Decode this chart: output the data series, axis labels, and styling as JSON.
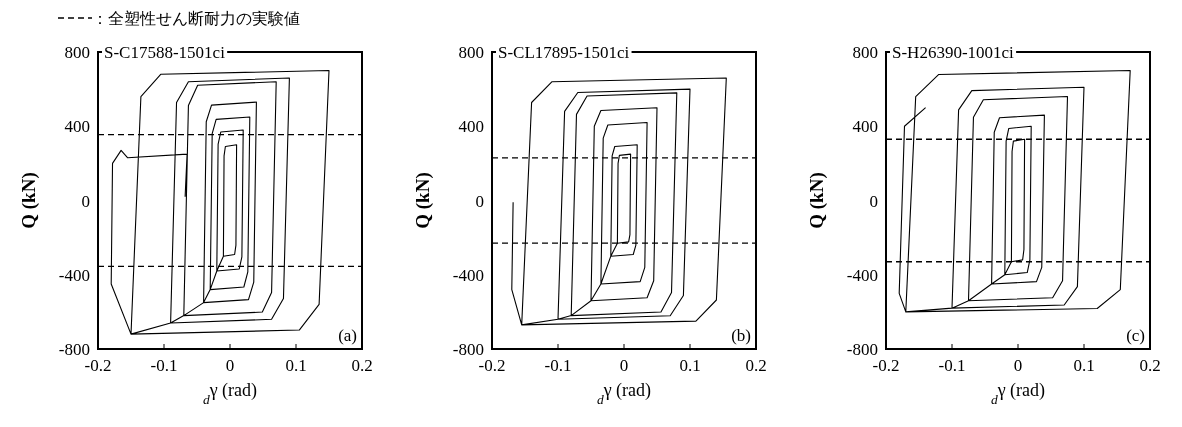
{
  "chart_data": [
    {
      "type": "line",
      "title": "S-C17588-1501ci",
      "xlabel": "$_{d}$γ (rad)",
      "ylabel": "Q (kN)",
      "xlim": [
        -0.2,
        0.2
      ],
      "ylim": [
        -800,
        800
      ],
      "xticks": [
        -0.2,
        -0.1,
        0,
        0.1,
        0.2
      ],
      "yticks": [
        -800,
        -400,
        0,
        400,
        800
      ],
      "legend": "top left",
      "annotations": [
        "(a)"
      ],
      "series": [
        {
          "color": "#000000",
          "x": [
            -0.01,
            -0.009,
            -0.007,
            0.01,
            0.009,
            0.007,
            -0.01,
            -0.02,
            -0.018,
            -0.014,
            0.02,
            0.018,
            0.014,
            -0.02,
            -0.03,
            -0.027,
            -0.021,
            0.03,
            0.027,
            0.021,
            -0.03,
            -0.04,
            -0.036,
            -0.028,
            0.04,
            0.036,
            0.028,
            -0.04,
            -0.07,
            -0.063,
            -0.049,
            0.07,
            0.063,
            0.049,
            -0.07,
            -0.09,
            -0.081,
            -0.063,
            0.09,
            0.081,
            0.063,
            -0.09,
            -0.15,
            -0.135,
            -0.105,
            0.15,
            0.135,
            0.105,
            -0.15,
            -0.18,
            -0.178,
            -0.165,
            -0.155,
            -0.065,
            -0.068
          ],
          "values": [
            -300,
            240,
            291,
            300,
            -240,
            -291,
            -300,
            -380,
            304,
            369,
            380,
            -304,
            -369,
            -380,
            -480,
            360,
            437,
            450,
            -384,
            -466,
            -480,
            -550,
            424,
            514,
            530,
            -440,
            -534,
            -550,
            -620,
            512,
            621,
            640,
            -496,
            -601,
            -620,
            -660,
            528,
            640,
            660,
            -528,
            -640,
            -660,
            -720,
            560,
            680,
            700,
            -560,
            -698,
            -720,
            -450,
            200,
            270,
            230,
            250,
            20
          ]
        }
      ],
      "ref_lines": [
        {
          "axis": "y",
          "value": 355,
          "label": "：全塑性せん断耐力の実験値",
          "line_style": "dashed",
          "color": "#000000"
        },
        {
          "axis": "y",
          "value": -355,
          "line_style": "dashed",
          "color": "#000000"
        }
      ]
    },
    {
      "type": "line",
      "title": "S-CL17895-1501ci",
      "xlabel": "$_{d}$γ (rad)",
      "ylabel": "Q (kN)",
      "xlim": [
        -0.2,
        0.2
      ],
      "ylim": [
        -800,
        800
      ],
      "xticks": [
        -0.2,
        -0.1,
        0,
        0.1,
        0.2
      ],
      "yticks": [
        -800,
        -400,
        0,
        400,
        800
      ],
      "annotations": [
        "(b)"
      ],
      "series": [
        {
          "color": "#000000",
          "x": [
            -0.01,
            -0.009,
            -0.007,
            0.01,
            0.009,
            0.007,
            -0.01,
            -0.02,
            -0.018,
            -0.014,
            0.02,
            0.018,
            0.014,
            -0.02,
            -0.035,
            -0.0315,
            -0.0245,
            0.035,
            0.0315,
            0.0245,
            -0.035,
            -0.05,
            -0.045,
            -0.035,
            0.05,
            0.045,
            0.035,
            -0.05,
            -0.08,
            -0.072,
            -0.056,
            0.08,
            0.072,
            0.056,
            -0.08,
            -0.1,
            -0.09,
            -0.07,
            0.1,
            0.09,
            0.07,
            -0.1,
            -0.155,
            -0.14,
            -0.109,
            0.155,
            0.14,
            0.109,
            -0.155,
            -0.17,
            -0.168
          ],
          "values": [
            -230,
            200,
            243,
            250,
            -184,
            -223,
            -230,
            -300,
            240,
            291,
            300,
            -240,
            -291,
            -300,
            -450,
            336,
            407,
            420,
            -360,
            -437,
            -450,
            -540,
            400,
            485,
            500,
            -432,
            -524,
            -540,
            -620,
            464,
            563,
            580,
            -496,
            -601,
            -620,
            -640,
            480,
            582,
            600,
            -512,
            -621,
            -640,
            -670,
            528,
            640,
            660,
            -536,
            -650,
            -670,
            -480,
            -10
          ]
        }
      ],
      "ref_lines": [
        {
          "axis": "y",
          "value": 230,
          "line_style": "dashed",
          "color": "#000000"
        },
        {
          "axis": "y",
          "value": -230,
          "line_style": "dashed",
          "color": "#000000"
        }
      ]
    },
    {
      "type": "line",
      "title": "S-H26390-1001ci",
      "xlabel": "$_{d}$γ (rad)",
      "ylabel": "Q (kN)",
      "xlim": [
        -0.2,
        0.2
      ],
      "ylim": [
        -800,
        800
      ],
      "xticks": [
        -0.2,
        -0.1,
        0,
        0.1,
        0.2
      ],
      "yticks": [
        -800,
        -400,
        0,
        400,
        800
      ],
      "annotations": [
        "(c)"
      ],
      "series": [
        {
          "color": "#000000",
          "x": [
            -0.01,
            -0.009,
            -0.007,
            0.01,
            0.009,
            0.007,
            -0.01,
            -0.02,
            -0.018,
            -0.014,
            0.02,
            0.018,
            0.014,
            -0.02,
            -0.04,
            -0.036,
            -0.028,
            0.04,
            0.036,
            0.028,
            -0.04,
            -0.075,
            -0.0675,
            -0.0525,
            0.075,
            0.0675,
            0.0525,
            -0.075,
            -0.1,
            -0.09,
            -0.07,
            0.1,
            0.09,
            0.07,
            -0.1,
            -0.17,
            -0.155,
            -0.12,
            0.17,
            0.155,
            0.12,
            -0.17,
            -0.18,
            -0.172,
            -0.14
          ],
          "values": [
            -330,
            264,
            320,
            330,
            -264,
            -320,
            -330,
            -400,
            320,
            388,
            400,
            -320,
            -388,
            -400,
            -450,
            368,
            446,
            460,
            -360,
            -437,
            -450,
            -540,
            448,
            543,
            560,
            -432,
            -524,
            -540,
            -580,
            488,
            592,
            610,
            -464,
            -563,
            -580,
            -600,
            560,
            679,
            700,
            -480,
            -582,
            -600,
            -500,
            400,
            500
          ]
        }
      ],
      "ref_lines": [
        {
          "axis": "y",
          "value": 330,
          "line_style": "dashed",
          "color": "#000000"
        },
        {
          "axis": "y",
          "value": -330,
          "line_style": "dashed",
          "color": "#000000"
        }
      ]
    }
  ]
}
